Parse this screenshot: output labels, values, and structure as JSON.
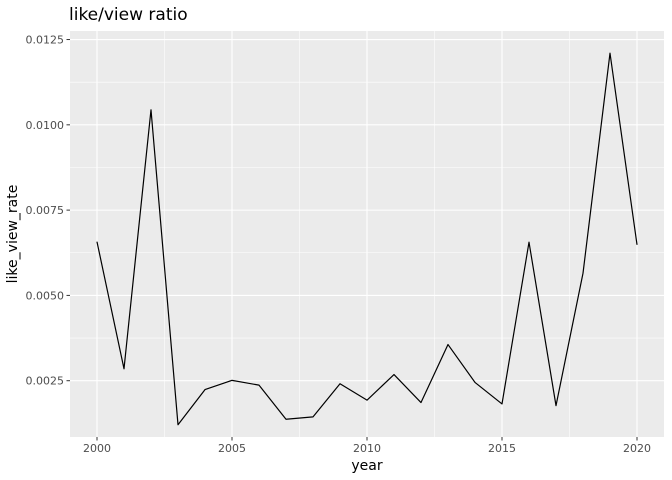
{
  "chart_data": {
    "type": "line",
    "title": "like/view ratio",
    "xlabel": "year",
    "ylabel": "like_view_rate",
    "x_ticks": [
      2000,
      2005,
      2010,
      2015,
      2020
    ],
    "y_ticks": [
      0.0025,
      0.005,
      0.0075,
      0.01,
      0.0125
    ],
    "x_tick_labels": [
      "2000",
      "2005",
      "2010",
      "2015",
      "2020"
    ],
    "y_tick_labels": [
      "0.0025",
      "0.0050",
      "0.0075",
      "0.0100",
      "0.0125"
    ],
    "xlim": [
      1999,
      2021
    ],
    "ylim": [
      0.00085,
      0.01275
    ],
    "grid": true,
    "series": [
      {
        "x": [
          2000,
          2001,
          2002,
          2003,
          2004,
          2005,
          2006,
          2007,
          2008,
          2009,
          2010,
          2011,
          2012,
          2013,
          2014,
          2015,
          2016,
          2017,
          2018,
          2019,
          2020
        ],
        "y": [
          0.00657,
          0.00285,
          0.01044,
          0.00121,
          0.00224,
          0.00251,
          0.00237,
          0.00137,
          0.00144,
          0.00241,
          0.00193,
          0.00268,
          0.00186,
          0.00356,
          0.00245,
          0.00182,
          0.00656,
          0.00177,
          0.00565,
          0.0121,
          0.00649
        ]
      }
    ],
    "colors": {
      "panel": "#ebebeb",
      "grid_major": "#ffffff",
      "line": "#000000",
      "tick_text": "#4d4d4d",
      "tick_mark": "#333333"
    }
  }
}
